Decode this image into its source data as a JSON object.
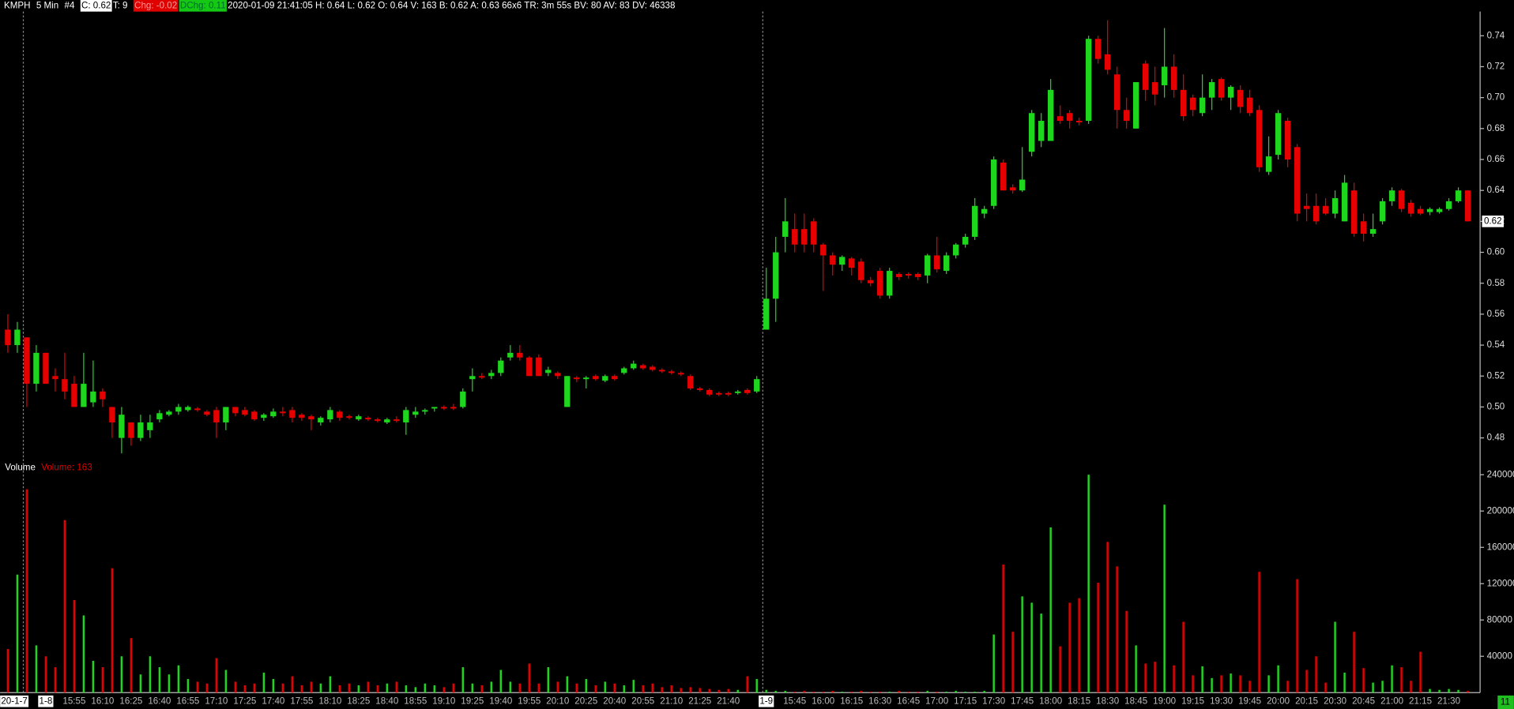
{
  "chart_data": [
    {
      "type": "candlestick",
      "header": {
        "title": "KMPH",
        "interval": "5 Min",
        "chart_number": "#4",
        "close": "C: 0.62",
        "trades": "T: 9",
        "change": "Chg: -0.02",
        "day_change": "DChg: 0.11",
        "details": "2020-01-09 21:41:05 H: 0.64 L: 0.62 O: 0.64 V: 163 B: 0.62 A: 0.63 66x6 TR: 3m 55s BV: 80 AV: 83 DV: 46338"
      },
      "categories": [
        "20-1-7",
        null,
        null,
        null,
        "1-8",
        null,
        null,
        "15:55",
        null,
        null,
        "16:10",
        null,
        null,
        "16:25",
        null,
        null,
        "16:40",
        null,
        null,
        "16:55",
        null,
        null,
        "17:10",
        null,
        null,
        "17:25",
        null,
        null,
        "17:40",
        null,
        null,
        "17:55",
        null,
        null,
        "18:10",
        null,
        null,
        "18:25",
        null,
        null,
        "18:40",
        null,
        null,
        "18:55",
        null,
        null,
        "19:10",
        null,
        null,
        "19:25",
        null,
        null,
        "19:40",
        null,
        null,
        "19:55",
        null,
        null,
        "20:10",
        null,
        null,
        "20:25",
        null,
        null,
        "20:40",
        null,
        null,
        "20:55",
        null,
        null,
        "21:10",
        null,
        null,
        "21:25",
        null,
        null,
        "21:40",
        null,
        null,
        null,
        "1-9",
        null,
        null,
        "15:45",
        null,
        null,
        "16:00",
        null,
        null,
        "16:15",
        null,
        null,
        "16:30",
        null,
        null,
        "16:45",
        null,
        null,
        "17:00",
        null,
        null,
        "17:15",
        null,
        null,
        "17:30",
        null,
        null,
        "17:45",
        null,
        null,
        "18:00",
        null,
        null,
        "18:15",
        null,
        null,
        "18:30",
        null,
        null,
        "18:45",
        null,
        null,
        "19:00",
        null,
        null,
        "19:15",
        null,
        null,
        "19:30",
        null,
        null,
        "19:45",
        null,
        null,
        "20:00",
        null,
        null,
        "20:15",
        null,
        null,
        "20:30",
        null,
        null,
        "20:45",
        null,
        null,
        "21:00",
        null,
        null,
        "21:15",
        null,
        null,
        "21:30",
        null,
        null
      ],
      "ohlc": [
        [
          0.55,
          0.56,
          0.535,
          0.54
        ],
        [
          0.54,
          0.555,
          0.535,
          0.55
        ],
        [
          0.545,
          0.545,
          0.5,
          0.515
        ],
        [
          0.515,
          0.54,
          0.51,
          0.535
        ],
        [
          0.535,
          0.535,
          0.515,
          0.515
        ],
        [
          0.52,
          0.525,
          0.51,
          0.518
        ],
        [
          0.518,
          0.535,
          0.505,
          0.51
        ],
        [
          0.515,
          0.52,
          0.5,
          0.5
        ],
        [
          0.5,
          0.535,
          0.5,
          0.515
        ],
        [
          0.503,
          0.53,
          0.5,
          0.51
        ],
        [
          0.51,
          0.512,
          0.5,
          0.505
        ],
        [
          0.5,
          0.5,
          0.48,
          0.49
        ],
        [
          0.48,
          0.5,
          0.47,
          0.495
        ],
        [
          0.49,
          0.49,
          0.475,
          0.48
        ],
        [
          0.48,
          0.495,
          0.478,
          0.49
        ],
        [
          0.485,
          0.495,
          0.48,
          0.49
        ],
        [
          0.492,
          0.498,
          0.49,
          0.496
        ],
        [
          0.495,
          0.498,
          0.494,
          0.497
        ],
        [
          0.497,
          0.502,
          0.495,
          0.5
        ],
        [
          0.498,
          0.501,
          0.497,
          0.5
        ],
        [
          0.499,
          0.5,
          0.497,
          0.498
        ],
        [
          0.497,
          0.498,
          0.494,
          0.495
        ],
        [
          0.498,
          0.5,
          0.48,
          0.49
        ],
        [
          0.49,
          0.5,
          0.485,
          0.5
        ],
        [
          0.5,
          0.5,
          0.494,
          0.496
        ],
        [
          0.498,
          0.5,
          0.494,
          0.495
        ],
        [
          0.497,
          0.498,
          0.491,
          0.492
        ],
        [
          0.493,
          0.496,
          0.491,
          0.495
        ],
        [
          0.494,
          0.499,
          0.493,
          0.497
        ],
        [
          0.497,
          0.5,
          0.494,
          0.496
        ],
        [
          0.498,
          0.5,
          0.49,
          0.493
        ],
        [
          0.495,
          0.496,
          0.491,
          0.493
        ],
        [
          0.494,
          0.495,
          0.485,
          0.492
        ],
        [
          0.49,
          0.494,
          0.488,
          0.493
        ],
        [
          0.492,
          0.5,
          0.49,
          0.498
        ],
        [
          0.497,
          0.498,
          0.491,
          0.493
        ],
        [
          0.494,
          0.495,
          0.492,
          0.493
        ],
        [
          0.492,
          0.495,
          0.491,
          0.494
        ],
        [
          0.493,
          0.494,
          0.491,
          0.492
        ],
        [
          0.492,
          0.493,
          0.49,
          0.491
        ],
        [
          0.49,
          0.493,
          0.489,
          0.492
        ],
        [
          0.492,
          0.494,
          0.49,
          0.491
        ],
        [
          0.49,
          0.5,
          0.482,
          0.498
        ],
        [
          0.495,
          0.5,
          0.493,
          0.497
        ],
        [
          0.497,
          0.499,
          0.495,
          0.498
        ],
        [
          0.499,
          0.5,
          0.497,
          0.5
        ],
        [
          0.5,
          0.501,
          0.498,
          0.499
        ],
        [
          0.5,
          0.502,
          0.498,
          0.499
        ],
        [
          0.5,
          0.512,
          0.499,
          0.51
        ],
        [
          0.518,
          0.525,
          0.51,
          0.52
        ],
        [
          0.52,
          0.522,
          0.518,
          0.519
        ],
        [
          0.52,
          0.524,
          0.518,
          0.522
        ],
        [
          0.522,
          0.532,
          0.52,
          0.53
        ],
        [
          0.532,
          0.54,
          0.53,
          0.535
        ],
        [
          0.535,
          0.54,
          0.53,
          0.532
        ],
        [
          0.532,
          0.533,
          0.52,
          0.52
        ],
        [
          0.532,
          0.534,
          0.52,
          0.52
        ],
        [
          0.522,
          0.526,
          0.52,
          0.524
        ],
        [
          0.522,
          0.523,
          0.518,
          0.52
        ],
        [
          0.5,
          0.52,
          0.5,
          0.52
        ],
        [
          0.519,
          0.52,
          0.516,
          0.518
        ],
        [
          0.518,
          0.52,
          0.512,
          0.519
        ],
        [
          0.52,
          0.521,
          0.517,
          0.518
        ],
        [
          0.517,
          0.521,
          0.516,
          0.52
        ],
        [
          0.52,
          0.521,
          0.517,
          0.518
        ],
        [
          0.522,
          0.526,
          0.521,
          0.525
        ],
        [
          0.525,
          0.53,
          0.524,
          0.528
        ],
        [
          0.527,
          0.528,
          0.524,
          0.525
        ],
        [
          0.526,
          0.527,
          0.523,
          0.524
        ],
        [
          0.524,
          0.525,
          0.522,
          0.523
        ],
        [
          0.523,
          0.524,
          0.521,
          0.522
        ],
        [
          0.522,
          0.523,
          0.52,
          0.521
        ],
        [
          0.52,
          0.521,
          0.511,
          0.512
        ],
        [
          0.512,
          0.513,
          0.51,
          0.511
        ],
        [
          0.511,
          0.512,
          0.507,
          0.508
        ],
        [
          0.509,
          0.51,
          0.507,
          0.508
        ],
        [
          0.509,
          0.51,
          0.507,
          0.508
        ],
        [
          0.509,
          0.511,
          0.508,
          0.51
        ],
        [
          0.511,
          0.512,
          0.508,
          0.509
        ],
        [
          0.51,
          0.52,
          0.509,
          0.518
        ],
        [
          0.55,
          0.59,
          0.55,
          0.57
        ],
        [
          0.57,
          0.61,
          0.555,
          0.6
        ],
        [
          0.61,
          0.635,
          0.6,
          0.62
        ],
        [
          0.615,
          0.625,
          0.6,
          0.605
        ],
        [
          0.615,
          0.625,
          0.6,
          0.605
        ],
        [
          0.62,
          0.622,
          0.6,
          0.605
        ],
        [
          0.605,
          0.606,
          0.575,
          0.598
        ],
        [
          0.598,
          0.6,
          0.585,
          0.592
        ],
        [
          0.592,
          0.598,
          0.588,
          0.597
        ],
        [
          0.596,
          0.597,
          0.585,
          0.59
        ],
        [
          0.594,
          0.596,
          0.58,
          0.582
        ],
        [
          0.582,
          0.584,
          0.578,
          0.58
        ],
        [
          0.588,
          0.59,
          0.57,
          0.572
        ],
        [
          0.572,
          0.59,
          0.57,
          0.588
        ],
        [
          0.586,
          0.587,
          0.582,
          0.584
        ],
        [
          0.586,
          0.587,
          0.583,
          0.585
        ],
        [
          0.586,
          0.587,
          0.582,
          0.584
        ],
        [
          0.585,
          0.599,
          0.58,
          0.598
        ],
        [
          0.598,
          0.61,
          0.587,
          0.589
        ],
        [
          0.588,
          0.6,
          0.586,
          0.598
        ],
        [
          0.598,
          0.606,
          0.596,
          0.605
        ],
        [
          0.605,
          0.612,
          0.603,
          0.61
        ],
        [
          0.61,
          0.635,
          0.608,
          0.63
        ],
        [
          0.625,
          0.63,
          0.622,
          0.628
        ],
        [
          0.63,
          0.662,
          0.628,
          0.66
        ],
        [
          0.658,
          0.66,
          0.64,
          0.64
        ],
        [
          0.642,
          0.644,
          0.638,
          0.64
        ],
        [
          0.64,
          0.668,
          0.639,
          0.647
        ],
        [
          0.665,
          0.692,
          0.662,
          0.69
        ],
        [
          0.672,
          0.69,
          0.668,
          0.685
        ],
        [
          0.672,
          0.712,
          0.672,
          0.705
        ],
        [
          0.688,
          0.695,
          0.683,
          0.685
        ],
        [
          0.69,
          0.692,
          0.68,
          0.685
        ],
        [
          0.685,
          0.687,
          0.682,
          0.684
        ],
        [
          0.685,
          0.74,
          0.683,
          0.738
        ],
        [
          0.738,
          0.74,
          0.722,
          0.725
        ],
        [
          0.728,
          0.75,
          0.715,
          0.718
        ],
        [
          0.715,
          0.72,
          0.68,
          0.692
        ],
        [
          0.692,
          0.7,
          0.68,
          0.685
        ],
        [
          0.68,
          0.71,
          0.68,
          0.71
        ],
        [
          0.722,
          0.724,
          0.698,
          0.705
        ],
        [
          0.71,
          0.72,
          0.695,
          0.702
        ],
        [
          0.708,
          0.745,
          0.7,
          0.72
        ],
        [
          0.72,
          0.728,
          0.7,
          0.705
        ],
        [
          0.705,
          0.715,
          0.685,
          0.688
        ],
        [
          0.7,
          0.702,
          0.688,
          0.692
        ],
        [
          0.69,
          0.715,
          0.688,
          0.7
        ],
        [
          0.7,
          0.712,
          0.692,
          0.71
        ],
        [
          0.712,
          0.713,
          0.698,
          0.7
        ],
        [
          0.7,
          0.708,
          0.692,
          0.707
        ],
        [
          0.705,
          0.708,
          0.69,
          0.694
        ],
        [
          0.7,
          0.705,
          0.688,
          0.69
        ],
        [
          0.692,
          0.695,
          0.652,
          0.655
        ],
        [
          0.652,
          0.675,
          0.65,
          0.662
        ],
        [
          0.663,
          0.692,
          0.66,
          0.69
        ],
        [
          0.685,
          0.687,
          0.655,
          0.66
        ],
        [
          0.668,
          0.67,
          0.62,
          0.625
        ],
        [
          0.63,
          0.638,
          0.62,
          0.628
        ],
        [
          0.63,
          0.638,
          0.618,
          0.62
        ],
        [
          0.63,
          0.635,
          0.624,
          0.625
        ],
        [
          0.625,
          0.64,
          0.622,
          0.635
        ],
        [
          0.62,
          0.65,
          0.62,
          0.645
        ],
        [
          0.64,
          0.645,
          0.61,
          0.612
        ],
        [
          0.62,
          0.625,
          0.607,
          0.612
        ],
        [
          0.612,
          0.625,
          0.61,
          0.615
        ],
        [
          0.62,
          0.635,
          0.618,
          0.633
        ],
        [
          0.633,
          0.642,
          0.63,
          0.64
        ],
        [
          0.64,
          0.641,
          0.626,
          0.628
        ],
        [
          0.632,
          0.634,
          0.623,
          0.625
        ],
        [
          0.628,
          0.63,
          0.624,
          0.625
        ],
        [
          0.626,
          0.629,
          0.624,
          0.628
        ],
        [
          0.626,
          0.629,
          0.625,
          0.628
        ],
        [
          0.628,
          0.635,
          0.627,
          0.633
        ],
        [
          0.633,
          0.642,
          0.632,
          0.64
        ],
        [
          0.64,
          0.64,
          0.62,
          0.62
        ]
      ],
      "up_color": "#1fd61f",
      "down_color": "#e60000",
      "ylim": [
        0.47,
        0.755
      ],
      "yticks": [
        0.48,
        {
          "value": 0.5,
          "label": "0.50"
        },
        0.52,
        0.54,
        0.56,
        0.58,
        {
          "value": 0.6,
          "label": "0.60"
        },
        0.62,
        0.64,
        0.66,
        0.68,
        {
          "value": 0.7,
          "label": "0.70"
        },
        0.72,
        0.74
      ],
      "last_price": 0.62,
      "corner_label": "11"
    },
    {
      "type": "bar",
      "title": "Volume",
      "subtitle": "Volume: 163",
      "values": [
        48000,
        130000,
        224000,
        52000,
        40000,
        28000,
        190000,
        102000,
        85000,
        35000,
        28000,
        137000,
        40000,
        60000,
        20000,
        40000,
        28000,
        20000,
        30000,
        15000,
        12000,
        10000,
        38000,
        25000,
        12000,
        8000,
        10000,
        22000,
        15000,
        10000,
        18000,
        8000,
        12000,
        10000,
        18000,
        8000,
        10000,
        8000,
        12000,
        8000,
        10000,
        12000,
        8000,
        6000,
        10000,
        8000,
        6000,
        10000,
        28000,
        10000,
        8000,
        12000,
        25000,
        12000,
        10000,
        32000,
        10000,
        28000,
        12000,
        18000,
        10000,
        15000,
        8000,
        12000,
        10000,
        8000,
        14000,
        8000,
        10000,
        6000,
        8000,
        5000,
        6000,
        5000,
        4000,
        3000,
        4000,
        3000,
        18000,
        15000,
        3000,
        2000,
        2000,
        1000,
        2000,
        1000,
        1000,
        2000,
        1000,
        1000,
        2000,
        1000,
        1000,
        1000,
        2000,
        1000,
        1000,
        2000,
        1000,
        1000,
        2000,
        1000,
        1000,
        2000,
        64000,
        141000,
        67000,
        106000,
        99000,
        87000,
        182000,
        51000,
        99000,
        104000,
        240000,
        121000,
        166000,
        139000,
        90000,
        52000,
        32000,
        34000,
        207000,
        30000,
        78000,
        19000,
        29000,
        16000,
        19000,
        21000,
        19000,
        13000,
        133000,
        19000,
        30000,
        13000,
        125000,
        25000,
        40000,
        11000,
        78000,
        22000,
        67000,
        27000,
        11000,
        13000,
        30000,
        28000,
        13000,
        45000,
        4000,
        3000,
        4000,
        3000,
        2000
      ],
      "ylim": [
        0,
        255000
      ],
      "yticks": [
        40000,
        80000,
        120000,
        160000,
        200000,
        240000
      ]
    }
  ]
}
